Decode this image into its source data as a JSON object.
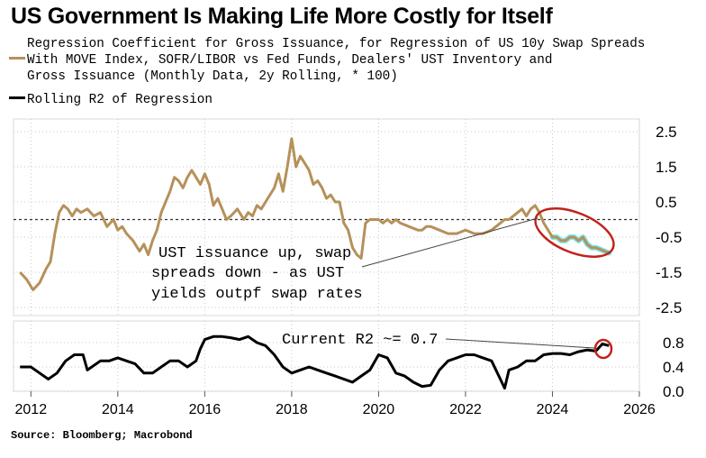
{
  "title": "US Government Is Making Life More Costly for Itself",
  "legend": {
    "coef_line1": "Regression Coefficient for Gross Issuance, for Regression of US 10y Swap Spreads",
    "coef_line2": "With MOVE Index, SOFR/LIBOR vs Fed Funds, Dealers' UST Inventory and",
    "coef_line3": "Gross Issuance (Monthly Data, 2y Rolling, * 100)",
    "r2": "Rolling R2 of Regression"
  },
  "source": "Source: Bloomberg; Macrobond",
  "colors": {
    "coef": "#b5915a",
    "r2": "#000000",
    "highlight": "#7fe6ee",
    "circle": "#c0221b"
  },
  "chart_data": [
    {
      "type": "line",
      "name": "Regression Coefficient",
      "ylim": [
        -2.75,
        2.75
      ],
      "yticks": [
        2.5,
        1.5,
        0.5,
        -0.5,
        -1.5,
        -2.5
      ],
      "ytick_labels": [
        "2.5",
        "1.5",
        "0.5",
        "-0.5",
        "-1.5",
        "-2.5"
      ],
      "zero_line": true,
      "x": [
        2011.75,
        2011.9,
        2012.05,
        2012.2,
        2012.35,
        2012.45,
        2012.55,
        2012.65,
        2012.75,
        2012.85,
        2012.95,
        2013.05,
        2013.15,
        2013.3,
        2013.45,
        2013.6,
        2013.75,
        2013.9,
        2014.0,
        2014.1,
        2014.2,
        2014.35,
        2014.5,
        2014.6,
        2014.7,
        2014.8,
        2014.9,
        2015.0,
        2015.1,
        2015.2,
        2015.3,
        2015.4,
        2015.5,
        2015.6,
        2015.7,
        2015.8,
        2015.9,
        2016.0,
        2016.1,
        2016.2,
        2016.3,
        2016.4,
        2016.5,
        2016.6,
        2016.75,
        2016.9,
        2017.0,
        2017.1,
        2017.2,
        2017.3,
        2017.45,
        2017.6,
        2017.7,
        2017.8,
        2017.9,
        2018.0,
        2018.1,
        2018.2,
        2018.3,
        2018.4,
        2018.5,
        2018.6,
        2018.7,
        2018.8,
        2018.9,
        2019.0,
        2019.1,
        2019.2,
        2019.3,
        2019.4,
        2019.5,
        2019.6,
        2019.7,
        2019.8,
        2019.9,
        2020.0,
        2020.1,
        2020.2,
        2020.3,
        2020.4,
        2020.5,
        2020.7,
        2020.9,
        2021.0,
        2021.1,
        2021.2,
        2021.4,
        2021.6,
        2021.8,
        2022.0,
        2022.2,
        2022.4,
        2022.6,
        2022.8,
        2022.9,
        2023.0,
        2023.1,
        2023.2,
        2023.3,
        2023.4,
        2023.5,
        2023.6,
        2023.7,
        2023.8,
        2023.9,
        2024.0,
        2024.1,
        2024.2,
        2024.3,
        2024.4,
        2024.5,
        2024.6,
        2024.7,
        2024.8,
        2024.9,
        2025.0,
        2025.1,
        2025.2,
        2025.3
      ],
      "y": [
        -1.5,
        -1.7,
        -2.0,
        -1.8,
        -1.4,
        -1.2,
        -0.4,
        0.2,
        0.4,
        0.3,
        0.1,
        0.3,
        0.2,
        0.3,
        0.1,
        0.2,
        -0.2,
        0.0,
        -0.3,
        -0.2,
        -0.4,
        -0.6,
        -0.9,
        -0.7,
        -1.0,
        -0.6,
        -0.3,
        0.2,
        0.5,
        0.8,
        1.2,
        1.1,
        0.9,
        1.2,
        1.4,
        1.2,
        1.0,
        1.3,
        1.0,
        0.4,
        0.6,
        0.3,
        0.0,
        0.1,
        0.3,
        0.0,
        0.2,
        0.1,
        0.4,
        0.3,
        0.6,
        0.9,
        1.3,
        0.8,
        1.5,
        2.3,
        1.5,
        1.8,
        1.6,
        1.4,
        1.0,
        1.1,
        0.9,
        0.6,
        0.7,
        0.5,
        0.5,
        -0.1,
        -0.3,
        -0.8,
        -1.0,
        -1.1,
        -0.1,
        0.0,
        0.0,
        0.0,
        -0.1,
        0.0,
        -0.1,
        0.0,
        -0.1,
        -0.2,
        -0.3,
        -0.3,
        -0.2,
        -0.2,
        -0.3,
        -0.4,
        -0.4,
        -0.3,
        -0.4,
        -0.4,
        -0.3,
        -0.1,
        0.0,
        0.0,
        0.1,
        0.2,
        0.3,
        0.1,
        0.3,
        0.4,
        0.2,
        -0.1,
        -0.3,
        -0.5,
        -0.5,
        -0.6,
        -0.6,
        -0.5,
        -0.5,
        -0.6,
        -0.5,
        -0.7,
        -0.8,
        -0.8,
        -0.85,
        -0.9,
        -0.95
      ]
    },
    {
      "type": "line",
      "name": "Rolling R2 of Regression",
      "ylim": [
        0.0,
        1.1
      ],
      "yticks": [
        0.8,
        0.4,
        0.0
      ],
      "ytick_labels": [
        "0.8",
        "0.4",
        "0.0"
      ],
      "x": [
        2011.75,
        2012.0,
        2012.2,
        2012.4,
        2012.6,
        2012.8,
        2013.0,
        2013.2,
        2013.3,
        2013.4,
        2013.6,
        2013.8,
        2014.0,
        2014.2,
        2014.4,
        2014.6,
        2014.8,
        2015.0,
        2015.2,
        2015.4,
        2015.6,
        2015.8,
        2015.9,
        2016.0,
        2016.2,
        2016.4,
        2016.6,
        2016.8,
        2017.0,
        2017.2,
        2017.4,
        2017.6,
        2017.8,
        2018.0,
        2018.2,
        2018.4,
        2018.6,
        2018.8,
        2019.0,
        2019.2,
        2019.4,
        2019.6,
        2019.8,
        2020.0,
        2020.2,
        2020.4,
        2020.6,
        2020.8,
        2021.0,
        2021.2,
        2021.4,
        2021.6,
        2021.8,
        2022.0,
        2022.2,
        2022.4,
        2022.6,
        2022.8,
        2022.9,
        2023.0,
        2023.2,
        2023.4,
        2023.6,
        2023.8,
        2024.0,
        2024.2,
        2024.4,
        2024.6,
        2024.8,
        2025.0,
        2025.15,
        2025.3
      ],
      "y": [
        0.4,
        0.4,
        0.3,
        0.2,
        0.3,
        0.5,
        0.6,
        0.6,
        0.35,
        0.4,
        0.5,
        0.5,
        0.55,
        0.5,
        0.45,
        0.3,
        0.3,
        0.4,
        0.5,
        0.5,
        0.4,
        0.5,
        0.7,
        0.85,
        0.9,
        0.9,
        0.88,
        0.85,
        0.9,
        0.8,
        0.75,
        0.6,
        0.4,
        0.3,
        0.35,
        0.4,
        0.35,
        0.3,
        0.25,
        0.2,
        0.15,
        0.25,
        0.35,
        0.6,
        0.55,
        0.3,
        0.25,
        0.15,
        0.08,
        0.1,
        0.35,
        0.5,
        0.55,
        0.6,
        0.6,
        0.55,
        0.5,
        0.2,
        0.05,
        0.35,
        0.4,
        0.5,
        0.5,
        0.6,
        0.62,
        0.62,
        0.6,
        0.65,
        0.68,
        0.66,
        0.78,
        0.75
      ]
    }
  ],
  "x_axis": {
    "xlim": [
      2011.6,
      2026.0
    ],
    "ticks": [
      2012,
      2014,
      2016,
      2018,
      2020,
      2022,
      2024,
      2026
    ],
    "tick_labels": [
      "2012",
      "2014",
      "2016",
      "2018",
      "2020",
      "2022",
      "2024",
      "2026"
    ]
  },
  "annotations": {
    "upper_l1": "UST issuance up, swap",
    "upper_l2": "spreads down - as UST",
    "upper_l3": "yields outpf swap rates",
    "lower": "Current R2 ~= 0.7"
  }
}
